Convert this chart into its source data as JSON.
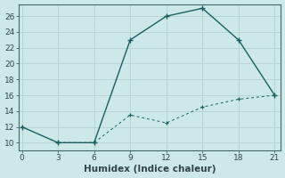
{
  "xlabel": "Humidex (Indice chaleur)",
  "bg_color": "#cce8e8",
  "grid_color_major": "#b8d4d4",
  "grid_color_minor": "#c8e0e0",
  "line_color": "#1a6060",
  "line1_x": [
    0,
    3,
    6,
    9,
    12,
    15,
    18,
    21
  ],
  "line1_y": [
    12,
    10,
    10,
    23,
    26,
    27,
    23,
    16
  ],
  "line2_x": [
    3,
    6,
    9,
    12,
    15,
    18,
    21
  ],
  "line2_y": [
    10,
    10,
    13.5,
    12.5,
    14.5,
    15.5,
    16
  ],
  "xlim": [
    -0.3,
    21.5
  ],
  "ylim": [
    9.0,
    27.5
  ],
  "xticks": [
    0,
    3,
    6,
    9,
    12,
    15,
    18,
    21
  ],
  "yticks": [
    10,
    12,
    14,
    16,
    18,
    20,
    22,
    24,
    26
  ]
}
